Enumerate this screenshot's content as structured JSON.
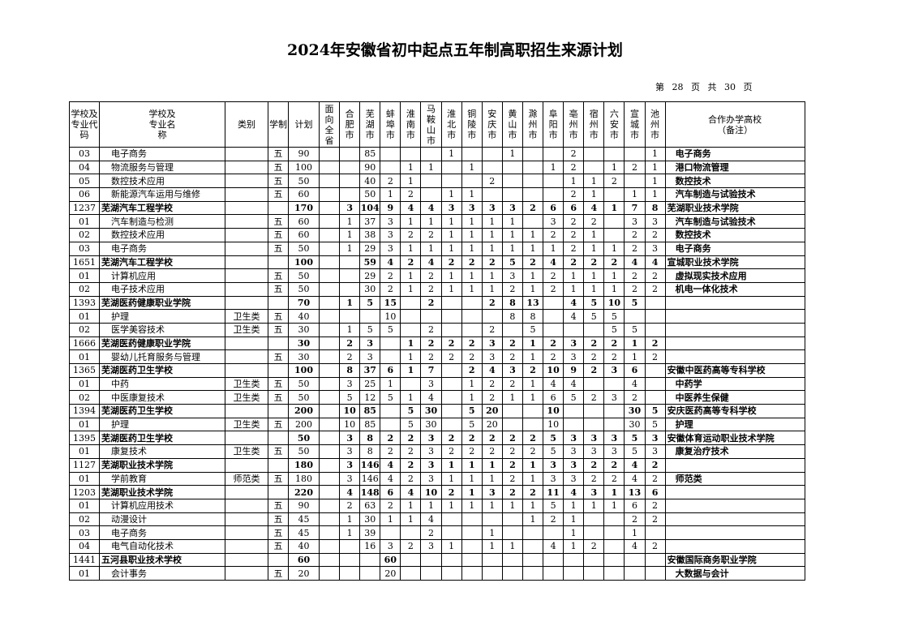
{
  "title": "2024年安徽省初中起点五年制高职招生来源计划",
  "page_indicator": "第 28 页 共 30 页",
  "headers": {
    "code": "学校及专业代码",
    "name": "学校及专业名称",
    "category": "类别",
    "system": "学制",
    "plan": "计划",
    "cities": [
      "面向全省",
      "合肥市",
      "芜湖市",
      "蚌埠市",
      "淮南市",
      "马鞍山市",
      "淮北市",
      "铜陵市",
      "安庆市",
      "黄山市",
      "滁州市",
      "阜阳市",
      "亳州市",
      "宿州市",
      "六安市",
      "宣城市",
      "池州市"
    ],
    "remark": "合作办学高校（备注）"
  },
  "rows": [
    {
      "type": "major",
      "code": "03",
      "name": "电子商务",
      "category": "",
      "system": "五",
      "plan": "90",
      "cities": [
        "",
        "",
        "85",
        "",
        "",
        "",
        "1",
        "",
        "",
        "1",
        "",
        "",
        "2",
        "",
        "",
        "",
        "1"
      ],
      "remark": "电子商务"
    },
    {
      "type": "major",
      "code": "04",
      "name": "物流服务与管理",
      "category": "",
      "system": "五",
      "plan": "100",
      "cities": [
        "",
        "",
        "90",
        "",
        "1",
        "1",
        "",
        "1",
        "",
        "",
        "",
        "1",
        "2",
        "",
        "1",
        "2",
        "1"
      ],
      "remark": "港口物流管理"
    },
    {
      "type": "major",
      "code": "05",
      "name": "数控技术应用",
      "category": "",
      "system": "五",
      "plan": "50",
      "cities": [
        "",
        "",
        "40",
        "2",
        "1",
        "",
        "",
        "",
        "2",
        "",
        "",
        "",
        "1",
        "1",
        "2",
        "",
        "1"
      ],
      "remark": "数控技术"
    },
    {
      "type": "major",
      "code": "06",
      "name": "新能源汽车运用与维修",
      "category": "",
      "system": "五",
      "plan": "60",
      "cities": [
        "",
        "",
        "50",
        "1",
        "2",
        "",
        "1",
        "1",
        "",
        "",
        "",
        "",
        "2",
        "1",
        "",
        "1",
        "1"
      ],
      "remark": "汽车制造与试验技术"
    },
    {
      "type": "school",
      "code": "1237",
      "name": "芜湖汽车工程学校",
      "category": "",
      "system": "",
      "plan": "170",
      "cities": [
        "",
        "3",
        "104",
        "9",
        "4",
        "4",
        "3",
        "3",
        "3",
        "3",
        "2",
        "6",
        "6",
        "4",
        "1",
        "7",
        "8"
      ],
      "remark": "芜湖职业技术学院"
    },
    {
      "type": "major",
      "code": "01",
      "name": "汽车制造与检测",
      "category": "",
      "system": "五",
      "plan": "60",
      "cities": [
        "",
        "1",
        "37",
        "3",
        "1",
        "1",
        "1",
        "1",
        "1",
        "1",
        "",
        "3",
        "2",
        "2",
        "",
        "3",
        "3"
      ],
      "remark": "汽车制造与试验技术"
    },
    {
      "type": "major",
      "code": "02",
      "name": "数控技术应用",
      "category": "",
      "system": "五",
      "plan": "60",
      "cities": [
        "",
        "1",
        "38",
        "3",
        "2",
        "2",
        "1",
        "1",
        "1",
        "1",
        "1",
        "2",
        "2",
        "1",
        "",
        "2",
        "2"
      ],
      "remark": "数控技术"
    },
    {
      "type": "major",
      "code": "03",
      "name": "电子商务",
      "category": "",
      "system": "五",
      "plan": "50",
      "cities": [
        "",
        "1",
        "29",
        "3",
        "1",
        "1",
        "1",
        "1",
        "1",
        "1",
        "1",
        "1",
        "2",
        "1",
        "1",
        "2",
        "3"
      ],
      "remark": "电子商务"
    },
    {
      "type": "school",
      "code": "1651",
      "name": "芜湖汽车工程学校",
      "category": "",
      "system": "",
      "plan": "100",
      "cities": [
        "",
        "",
        "59",
        "4",
        "2",
        "4",
        "2",
        "2",
        "2",
        "5",
        "2",
        "4",
        "2",
        "2",
        "2",
        "4",
        "4"
      ],
      "remark": "宣城职业技术学院"
    },
    {
      "type": "major",
      "code": "01",
      "name": "计算机应用",
      "category": "",
      "system": "五",
      "plan": "50",
      "cities": [
        "",
        "",
        "29",
        "2",
        "1",
        "2",
        "1",
        "1",
        "1",
        "3",
        "1",
        "2",
        "1",
        "1",
        "1",
        "2",
        "2"
      ],
      "remark": "虚拟现实技术应用"
    },
    {
      "type": "major",
      "code": "02",
      "name": "电子技术应用",
      "category": "",
      "system": "五",
      "plan": "50",
      "cities": [
        "",
        "",
        "30",
        "2",
        "1",
        "2",
        "1",
        "1",
        "1",
        "2",
        "1",
        "2",
        "1",
        "1",
        "1",
        "2",
        "2"
      ],
      "remark": "机电一体化技术"
    },
    {
      "type": "school",
      "code": "1393",
      "name": "芜湖医药健康职业学院",
      "category": "",
      "system": "",
      "plan": "70",
      "cities": [
        "",
        "1",
        "5",
        "15",
        "",
        "2",
        "",
        "",
        "2",
        "8",
        "13",
        "",
        "4",
        "5",
        "10",
        "5",
        ""
      ],
      "remark": ""
    },
    {
      "type": "major",
      "code": "01",
      "name": "护理",
      "category": "卫生类",
      "system": "五",
      "plan": "40",
      "cities": [
        "",
        "",
        "",
        "10",
        "",
        "",
        "",
        "",
        "",
        "8",
        "8",
        "",
        "4",
        "5",
        "5",
        "",
        ""
      ],
      "remark": ""
    },
    {
      "type": "major",
      "code": "02",
      "name": "医学美容技术",
      "category": "卫生类",
      "system": "五",
      "plan": "30",
      "cities": [
        "",
        "1",
        "5",
        "5",
        "",
        "2",
        "",
        "",
        "2",
        "",
        "5",
        "",
        "",
        "",
        "5",
        "5",
        ""
      ],
      "remark": ""
    },
    {
      "type": "school",
      "code": "1666",
      "name": "芜湖医药健康职业学院",
      "category": "",
      "system": "",
      "plan": "30",
      "cities": [
        "",
        "2",
        "3",
        "",
        "1",
        "2",
        "2",
        "2",
        "3",
        "2",
        "1",
        "2",
        "3",
        "2",
        "2",
        "1",
        "2"
      ],
      "remark": ""
    },
    {
      "type": "major",
      "code": "01",
      "name": "婴幼儿托育服务与管理",
      "category": "",
      "system": "五",
      "plan": "30",
      "cities": [
        "",
        "2",
        "3",
        "",
        "1",
        "2",
        "2",
        "2",
        "3",
        "2",
        "1",
        "2",
        "3",
        "2",
        "2",
        "1",
        "2"
      ],
      "remark": ""
    },
    {
      "type": "school",
      "code": "1365",
      "name": "芜湖医药卫生学校",
      "category": "",
      "system": "",
      "plan": "100",
      "cities": [
        "",
        "8",
        "37",
        "6",
        "1",
        "7",
        "",
        "2",
        "4",
        "3",
        "2",
        "10",
        "9",
        "2",
        "3",
        "6",
        ""
      ],
      "remark": "安徽中医药高等专科学校"
    },
    {
      "type": "major",
      "code": "01",
      "name": "中药",
      "category": "卫生类",
      "system": "五",
      "plan": "50",
      "cities": [
        "",
        "3",
        "25",
        "1",
        "",
        "3",
        "",
        "1",
        "2",
        "2",
        "1",
        "4",
        "4",
        "",
        "",
        "4",
        ""
      ],
      "remark": "中药学"
    },
    {
      "type": "major",
      "code": "02",
      "name": "中医康复技术",
      "category": "卫生类",
      "system": "五",
      "plan": "50",
      "cities": [
        "",
        "5",
        "12",
        "5",
        "1",
        "4",
        "",
        "1",
        "2",
        "1",
        "1",
        "6",
        "5",
        "2",
        "3",
        "2",
        ""
      ],
      "remark": "中医养生保健"
    },
    {
      "type": "school",
      "code": "1394",
      "name": "芜湖医药卫生学校",
      "category": "",
      "system": "",
      "plan": "200",
      "cities": [
        "",
        "10",
        "85",
        "",
        "5",
        "30",
        "",
        "5",
        "20",
        "",
        "",
        "10",
        "",
        "",
        "",
        "30",
        "5"
      ],
      "remark": "安庆医药高等专科学校"
    },
    {
      "type": "major",
      "code": "01",
      "name": "护理",
      "category": "卫生类",
      "system": "五",
      "plan": "200",
      "cities": [
        "",
        "10",
        "85",
        "",
        "5",
        "30",
        "",
        "5",
        "20",
        "",
        "",
        "10",
        "",
        "",
        "",
        "30",
        "5"
      ],
      "remark": "护理"
    },
    {
      "type": "school",
      "code": "1395",
      "name": "芜湖医药卫生学校",
      "category": "",
      "system": "",
      "plan": "50",
      "cities": [
        "",
        "3",
        "8",
        "2",
        "2",
        "3",
        "2",
        "2",
        "2",
        "2",
        "2",
        "5",
        "3",
        "3",
        "3",
        "5",
        "3"
      ],
      "remark": "安徽体育运动职业技术学院"
    },
    {
      "type": "major",
      "code": "01",
      "name": "康复技术",
      "category": "卫生类",
      "system": "五",
      "plan": "50",
      "cities": [
        "",
        "3",
        "8",
        "2",
        "2",
        "3",
        "2",
        "2",
        "2",
        "2",
        "2",
        "5",
        "3",
        "3",
        "3",
        "5",
        "3"
      ],
      "remark": "康复治疗技术"
    },
    {
      "type": "school",
      "code": "1127",
      "name": "芜湖职业技术学院",
      "category": "",
      "system": "",
      "plan": "180",
      "cities": [
        "",
        "3",
        "146",
        "4",
        "2",
        "3",
        "1",
        "1",
        "1",
        "2",
        "1",
        "3",
        "3",
        "2",
        "2",
        "4",
        "2"
      ],
      "remark": ""
    },
    {
      "type": "major",
      "code": "01",
      "name": "学前教育",
      "category": "师范类",
      "system": "五",
      "plan": "180",
      "cities": [
        "",
        "3",
        "146",
        "4",
        "2",
        "3",
        "1",
        "1",
        "1",
        "2",
        "1",
        "3",
        "3",
        "2",
        "2",
        "4",
        "2"
      ],
      "remark": "师范类"
    },
    {
      "type": "school",
      "code": "1203",
      "name": "芜湖职业技术学院",
      "category": "",
      "system": "",
      "plan": "220",
      "cities": [
        "",
        "4",
        "148",
        "6",
        "4",
        "10",
        "2",
        "1",
        "3",
        "2",
        "2",
        "11",
        "4",
        "3",
        "1",
        "13",
        "6"
      ],
      "remark": ""
    },
    {
      "type": "major",
      "code": "01",
      "name": "计算机应用技术",
      "category": "",
      "system": "五",
      "plan": "90",
      "cities": [
        "",
        "2",
        "63",
        "2",
        "1",
        "1",
        "1",
        "1",
        "1",
        "1",
        "1",
        "5",
        "1",
        "1",
        "1",
        "6",
        "2"
      ],
      "remark": ""
    },
    {
      "type": "major",
      "code": "02",
      "name": "动漫设计",
      "category": "",
      "system": "五",
      "plan": "45",
      "cities": [
        "",
        "1",
        "30",
        "1",
        "1",
        "4",
        "",
        "",
        "",
        "",
        "1",
        "2",
        "1",
        "",
        "",
        "2",
        "2"
      ],
      "remark": ""
    },
    {
      "type": "major",
      "code": "03",
      "name": "电子商务",
      "category": "",
      "system": "五",
      "plan": "45",
      "cities": [
        "",
        "1",
        "39",
        "",
        "",
        "2",
        "",
        "",
        "1",
        "",
        "",
        "",
        "1",
        "",
        "",
        "1",
        ""
      ],
      "remark": ""
    },
    {
      "type": "major",
      "code": "04",
      "name": "电气自动化技术",
      "category": "",
      "system": "五",
      "plan": "40",
      "cities": [
        "",
        "",
        "16",
        "3",
        "2",
        "3",
        "1",
        "",
        "1",
        "1",
        "",
        "4",
        "1",
        "2",
        "",
        "4",
        "2"
      ],
      "remark": ""
    },
    {
      "type": "school",
      "code": "1441",
      "name": "五河县职业技术学校",
      "category": "",
      "system": "",
      "plan": "60",
      "cities": [
        "",
        "",
        "",
        "60",
        "",
        "",
        "",
        "",
        "",
        "",
        "",
        "",
        "",
        "",
        "",
        "",
        ""
      ],
      "remark": "安徽国际商务职业学院"
    },
    {
      "type": "major",
      "code": "01",
      "name": "会计事务",
      "category": "",
      "system": "五",
      "plan": "20",
      "cities": [
        "",
        "",
        "",
        "20",
        "",
        "",
        "",
        "",
        "",
        "",
        "",
        "",
        "",
        "",
        "",
        "",
        ""
      ],
      "remark": "大数据与会计"
    }
  ]
}
